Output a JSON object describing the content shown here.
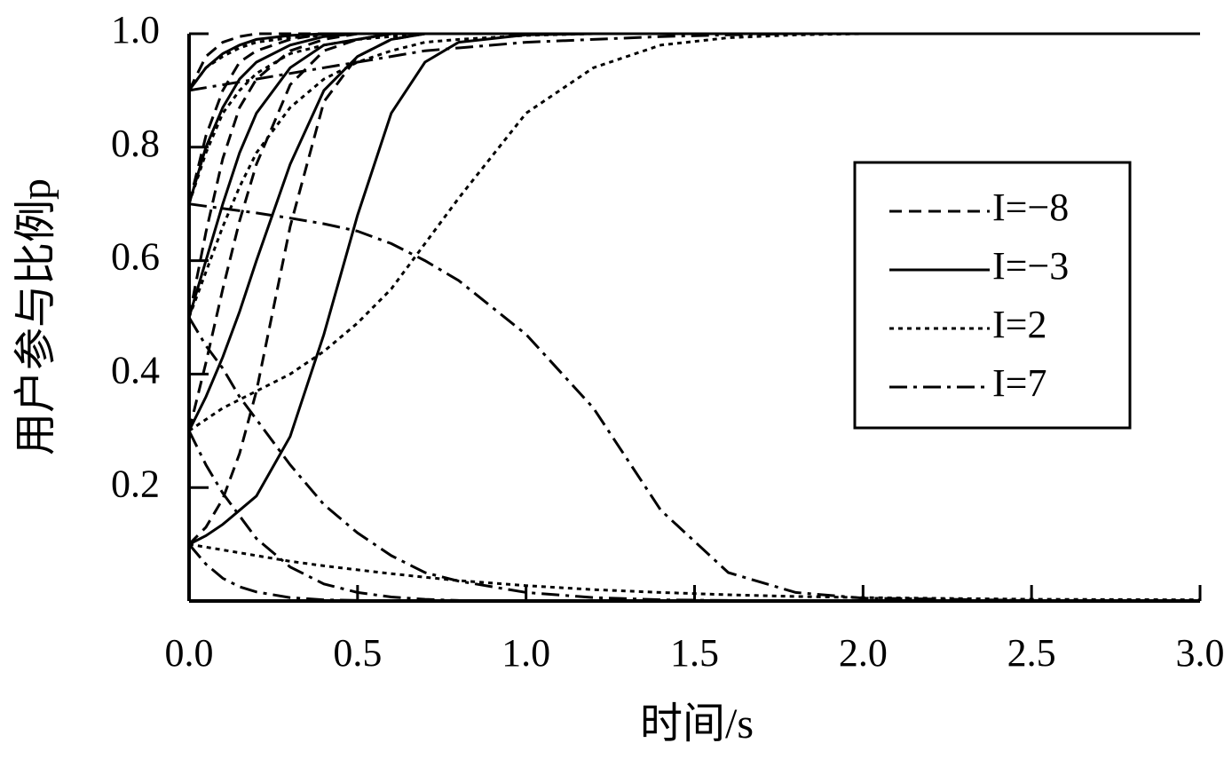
{
  "chart_data": {
    "type": "line",
    "x_label": "时间/s",
    "y_label": "用户参与比例p",
    "x": [
      0,
      0.05,
      0.1,
      0.15,
      0.2,
      0.3,
      0.4,
      0.5,
      0.6,
      0.7,
      0.8,
      1.0,
      1.2,
      1.4,
      1.6,
      1.8,
      2.0,
      2.5,
      3.0
    ],
    "xlim": [
      0,
      3
    ],
    "xticks": [
      {
        "value": 0,
        "label": "0.0"
      },
      0.5,
      {
        "value": 1,
        "label": "1.0"
      },
      1.5,
      {
        "value": 2,
        "label": "2.0"
      },
      2.5,
      {
        "value": 3,
        "label": "3.0"
      }
    ],
    "ylim": [
      0,
      1
    ],
    "yticks": [
      0.2,
      0.4,
      0.6,
      0.8,
      {
        "value": 1,
        "label": "1.0"
      }
    ],
    "legend": "upper right",
    "series": [
      {
        "name": "I=−8",
        "color": "#000000",
        "line_style": "dashed",
        "lines": [
          {
            "values": [
              0.1,
              0.13,
              0.18,
              0.26,
              0.37,
              0.66,
              0.88,
              0.96,
              0.99,
              1,
              1,
              1,
              1,
              1,
              1,
              1,
              1,
              1,
              1
            ]
          },
          {
            "values": [
              0.3,
              0.42,
              0.55,
              0.67,
              0.77,
              0.91,
              0.97,
              0.99,
              1,
              1,
              1,
              1,
              1,
              1,
              1,
              1,
              1,
              1,
              1
            ]
          },
          {
            "values": [
              0.5,
              0.65,
              0.78,
              0.87,
              0.92,
              0.97,
              0.99,
              1,
              1,
              1,
              1,
              1,
              1,
              1,
              1,
              1,
              1,
              1,
              1
            ]
          },
          {
            "values": [
              0.7,
              0.82,
              0.9,
              0.95,
              0.97,
              0.99,
              1,
              1,
              1,
              1,
              1,
              1,
              1,
              1,
              1,
              1,
              1,
              1,
              1
            ]
          },
          {
            "values": [
              0.9,
              0.96,
              0.985,
              0.995,
              1,
              1,
              1,
              1,
              1,
              1,
              1,
              1,
              1,
              1,
              1,
              1,
              1,
              1,
              1
            ]
          }
        ]
      },
      {
        "name": "I=−3",
        "color": "#000000",
        "line_style": "solid",
        "lines": [
          {
            "values": [
              0.1,
              0.115,
              0.135,
              0.16,
              0.185,
              0.29,
              0.47,
              0.68,
              0.86,
              0.95,
              0.985,
              0.998,
              1,
              1,
              1,
              1,
              1,
              1,
              1
            ]
          },
          {
            "values": [
              0.3,
              0.36,
              0.43,
              0.51,
              0.6,
              0.77,
              0.9,
              0.96,
              0.99,
              1,
              1,
              1,
              1,
              1,
              1,
              1,
              1,
              1,
              1
            ]
          },
          {
            "values": [
              0.5,
              0.6,
              0.7,
              0.79,
              0.86,
              0.94,
              0.98,
              0.99,
              1,
              1,
              1,
              1,
              1,
              1,
              1,
              1,
              1,
              1,
              1
            ]
          },
          {
            "values": [
              0.7,
              0.8,
              0.87,
              0.92,
              0.95,
              0.98,
              0.995,
              1,
              1,
              1,
              1,
              1,
              1,
              1,
              1,
              1,
              1,
              1,
              1
            ]
          },
          {
            "values": [
              0.9,
              0.94,
              0.965,
              0.98,
              0.99,
              0.997,
              1,
              1,
              1,
              1,
              1,
              1,
              1,
              1,
              1,
              1,
              1,
              1,
              1
            ]
          }
        ]
      },
      {
        "name": "I=2",
        "color": "#000000",
        "line_style": "dotted",
        "lines": [
          {
            "values": [
              0.1,
              0.095,
              0.09,
              0.085,
              0.08,
              0.07,
              0.062,
              0.055,
              0.048,
              0.042,
              0.036,
              0.027,
              0.02,
              0.015,
              0.011,
              0.008,
              0.006,
              0.003,
              0.002
            ]
          },
          {
            "values": [
              0.3,
              0.32,
              0.34,
              0.355,
              0.37,
              0.4,
              0.44,
              0.49,
              0.55,
              0.63,
              0.71,
              0.86,
              0.94,
              0.98,
              0.993,
              0.998,
              1,
              1,
              1
            ]
          },
          {
            "values": [
              0.5,
              0.58,
              0.66,
              0.73,
              0.79,
              0.87,
              0.92,
              0.95,
              0.97,
              0.985,
              0.99,
              0.997,
              1,
              1,
              1,
              1,
              1,
              1,
              1
            ]
          },
          {
            "values": [
              0.7,
              0.79,
              0.86,
              0.9,
              0.93,
              0.965,
              0.98,
              0.99,
              0.995,
              1,
              1,
              1,
              1,
              1,
              1,
              1,
              1,
              1,
              1
            ]
          },
          {
            "values": [
              0.9,
              0.94,
              0.96,
              0.975,
              0.985,
              0.993,
              0.997,
              1,
              1,
              1,
              1,
              1,
              1,
              1,
              1,
              1,
              1,
              1,
              1
            ]
          }
        ]
      },
      {
        "name": "I=7",
        "color": "#000000",
        "line_style": "dashdot",
        "lines": [
          {
            "values": [
              0.1,
              0.065,
              0.04,
              0.025,
              0.016,
              0.006,
              0.002,
              0.001,
              0,
              0,
              0,
              0,
              0,
              0,
              0,
              0,
              0,
              0,
              0
            ]
          },
          {
            "values": [
              0.3,
              0.24,
              0.19,
              0.15,
              0.11,
              0.06,
              0.03,
              0.015,
              0.007,
              0.003,
              0.001,
              0,
              0,
              0,
              0,
              0,
              0,
              0,
              0
            ]
          },
          {
            "values": [
              0.5,
              0.45,
              0.41,
              0.36,
              0.32,
              0.24,
              0.17,
              0.12,
              0.08,
              0.05,
              0.035,
              0.015,
              0.006,
              0.002,
              0.001,
              0,
              0,
              0,
              0
            ]
          },
          {
            "values": [
              0.7,
              0.696,
              0.692,
              0.688,
              0.684,
              0.675,
              0.665,
              0.652,
              0.63,
              0.6,
              0.565,
              0.47,
              0.34,
              0.16,
              0.05,
              0.015,
              0.005,
              0.001,
              0
            ]
          },
          {
            "values": [
              0.9,
              0.905,
              0.91,
              0.915,
              0.92,
              0.93,
              0.94,
              0.95,
              0.96,
              0.97,
              0.975,
              0.985,
              0.99,
              0.995,
              0.998,
              1,
              1,
              1,
              1
            ]
          }
        ]
      }
    ]
  }
}
